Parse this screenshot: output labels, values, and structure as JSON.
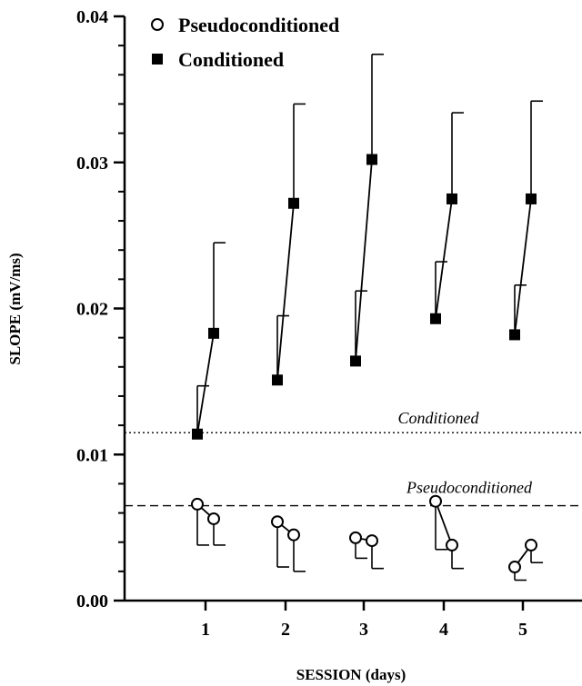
{
  "chart_data": {
    "type": "scatter",
    "xlabel": "SESSION (days)",
    "ylabel": "SLOPE (mV/ms)",
    "xticks": [
      "1",
      "2",
      "3",
      "4",
      "5"
    ],
    "yticks": [
      "0.00",
      "0.01",
      "0.02",
      "0.03",
      "0.04"
    ],
    "ylim": [
      0,
      0.04
    ],
    "grid": false,
    "legend_position": "top-left",
    "series": [
      {
        "name": "Pseudoconditioned",
        "marker": "open-circle",
        "pairs": [
          {
            "session": 1,
            "first": 0.0066,
            "first_err": 0.0038,
            "second": 0.0056,
            "second_err": 0.0038
          },
          {
            "session": 2,
            "first": 0.0054,
            "first_err": 0.0023,
            "second": 0.0045,
            "second_err": 0.002
          },
          {
            "session": 3,
            "first": 0.0043,
            "first_err": 0.0029,
            "second": 0.0041,
            "second_err": 0.0022
          },
          {
            "session": 4,
            "first": 0.0068,
            "first_err": 0.0035,
            "second": 0.0038,
            "second_err": 0.0022
          },
          {
            "session": 5,
            "first": 0.0023,
            "first_err": 0.0014,
            "second": 0.0038,
            "second_err": 0.0026
          }
        ]
      },
      {
        "name": "Conditioned",
        "marker": "filled-square",
        "pairs": [
          {
            "session": 1,
            "first": 0.0114,
            "first_err": 0.0147,
            "second": 0.0183,
            "second_err": 0.0245
          },
          {
            "session": 2,
            "first": 0.0151,
            "first_err": 0.0195,
            "second": 0.0272,
            "second_err": 0.034
          },
          {
            "session": 3,
            "first": 0.0164,
            "first_err": 0.0212,
            "second": 0.0302,
            "second_err": 0.0374
          },
          {
            "session": 4,
            "first": 0.0193,
            "first_err": 0.0232,
            "second": 0.0275,
            "second_err": 0.0334
          },
          {
            "session": 5,
            "first": 0.0182,
            "first_err": 0.0216,
            "second": 0.0275,
            "second_err": 0.0342
          }
        ]
      }
    ],
    "reference_lines": [
      {
        "label": "Conditioned",
        "y": 0.0115,
        "style": "dotted"
      },
      {
        "label": "Pseudoconditioned",
        "y": 0.0065,
        "style": "dashed"
      }
    ]
  }
}
